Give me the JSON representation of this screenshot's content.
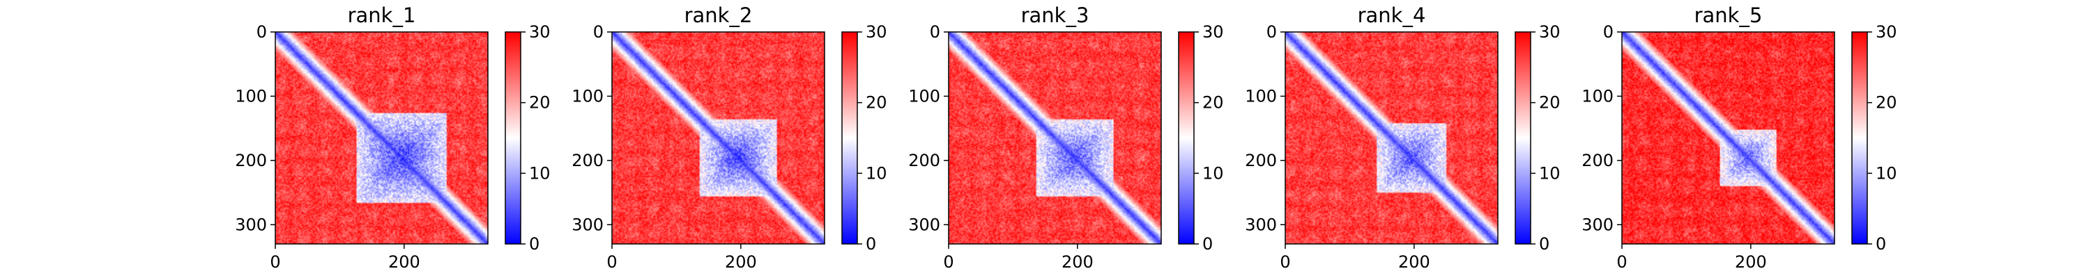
{
  "chart_data": {
    "type": "heatmap",
    "colormap": {
      "name": "bwr",
      "low": "#0000ff",
      "mid": "#ffffff",
      "high": "#ff0000",
      "range": [
        0,
        30
      ]
    },
    "colorbar_ticks": [
      0,
      10,
      20,
      30
    ],
    "x_ticks": [
      0,
      200
    ],
    "y_ticks": [
      0,
      100,
      200,
      300
    ],
    "matrix_extent": [
      0,
      330
    ],
    "panels": [
      {
        "title": "rank_1",
        "diagonal_low": 2,
        "cluster_center": 195,
        "cluster_halfwidth": 70,
        "cluster_min": 4,
        "cluster_max": 14,
        "background": 27
      },
      {
        "title": "rank_2",
        "diagonal_low": 2,
        "cluster_center": 195,
        "cluster_halfwidth": 60,
        "cluster_min": 4,
        "cluster_max": 15,
        "background": 27
      },
      {
        "title": "rank_3",
        "diagonal_low": 2,
        "cluster_center": 195,
        "cluster_halfwidth": 60,
        "cluster_min": 5,
        "cluster_max": 15,
        "background": 27
      },
      {
        "title": "rank_4",
        "diagonal_low": 2,
        "cluster_center": 195,
        "cluster_halfwidth": 55,
        "cluster_min": 5,
        "cluster_max": 15,
        "background": 27
      },
      {
        "title": "rank_5",
        "diagonal_low": 2,
        "cluster_center": 195,
        "cluster_halfwidth": 45,
        "cluster_min": 6,
        "cluster_max": 16,
        "background": 28
      }
    ]
  }
}
